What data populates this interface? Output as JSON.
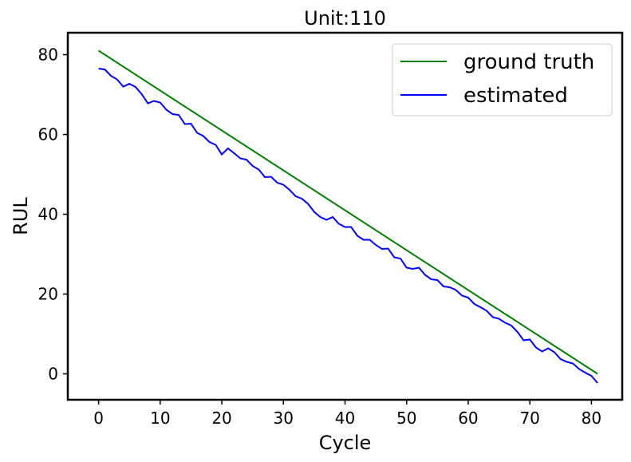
{
  "chart_data": {
    "type": "line",
    "title": "Unit:110",
    "xlabel": "Cycle",
    "ylabel": "RUL",
    "xlim": [
      -5,
      85
    ],
    "ylim": [
      -6.5,
      85.5
    ],
    "xticks": [
      0,
      10,
      20,
      30,
      40,
      50,
      60,
      70,
      80
    ],
    "yticks": [
      0,
      20,
      40,
      60,
      80
    ],
    "grid": false,
    "legend_position": "top-right",
    "series": [
      {
        "name": "ground truth",
        "color": "#008000",
        "x": [
          0,
          81
        ],
        "y": [
          81,
          0
        ]
      },
      {
        "name": "estimated",
        "color": "#0000ff",
        "x": [
          0,
          1,
          2,
          3,
          4,
          5,
          6,
          7,
          8,
          9,
          10,
          11,
          12,
          13,
          14,
          15,
          16,
          17,
          18,
          19,
          20,
          21,
          22,
          23,
          24,
          25,
          26,
          27,
          28,
          29,
          30,
          31,
          32,
          33,
          34,
          35,
          36,
          37,
          38,
          39,
          40,
          41,
          42,
          43,
          44,
          45,
          46,
          47,
          48,
          49,
          50,
          51,
          52,
          53,
          54,
          55,
          56,
          57,
          58,
          59,
          60,
          61,
          62,
          63,
          64,
          65,
          66,
          67,
          68,
          69,
          70,
          71,
          72,
          73,
          74,
          75,
          76,
          77,
          78,
          79,
          80,
          81
        ],
        "y": [
          76.5,
          76.3,
          74.7,
          73.8,
          72.0,
          72.7,
          71.9,
          70.1,
          67.8,
          68.4,
          68.0,
          66.2,
          65.1,
          64.9,
          62.6,
          62.7,
          60.4,
          59.6,
          58.1,
          57.4,
          55.0,
          56.5,
          55.3,
          54.0,
          53.7,
          52.1,
          51.2,
          49.3,
          49.4,
          47.9,
          47.4,
          46.1,
          44.5,
          43.9,
          42.6,
          40.6,
          39.3,
          38.6,
          39.3,
          37.6,
          36.8,
          36.8,
          34.6,
          33.6,
          33.6,
          32.3,
          31.3,
          31.4,
          29.2,
          28.9,
          26.6,
          26.3,
          26.6,
          24.8,
          23.7,
          23.5,
          21.9,
          21.7,
          21.0,
          19.6,
          19.1,
          17.5,
          16.7,
          15.8,
          14.2,
          13.8,
          12.8,
          12.1,
          10.5,
          8.4,
          8.6,
          6.6,
          5.6,
          6.4,
          5.4,
          3.7,
          3.0,
          2.6,
          1.2,
          0.3,
          -0.5,
          -2.3
        ]
      }
    ]
  }
}
